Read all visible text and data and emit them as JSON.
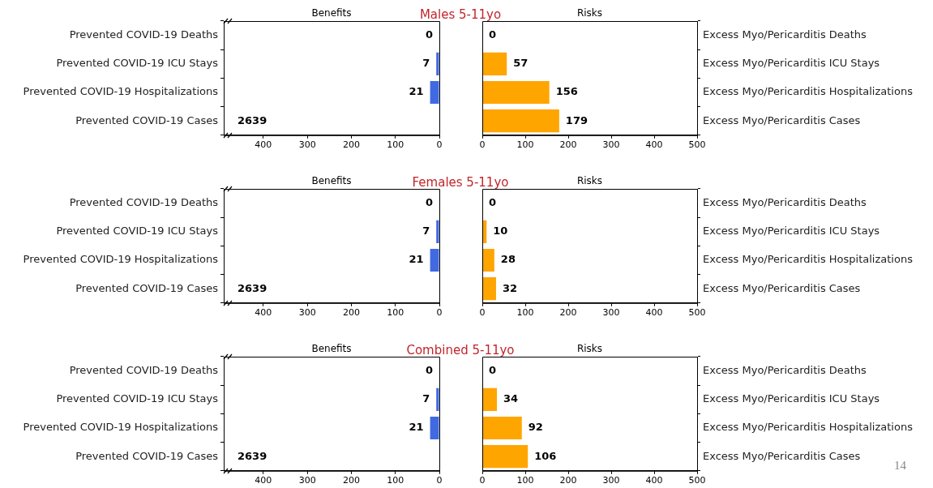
{
  "chart_data": [
    {
      "type": "bar",
      "orientation": "horizontal",
      "title": "Benefits",
      "subtitle": "Males 5-11yo",
      "categories": [
        "Prevented COVID-19 Deaths",
        "Prevented COVID-19 ICU Stays",
        "Prevented COVID-19 Hospitalizations",
        "Prevented COVID-19 Cases"
      ],
      "values": [
        0,
        7,
        21,
        null
      ],
      "value_labels": [
        "0",
        "7",
        "21",
        "2639"
      ],
      "color": "#4169e1",
      "xlim": [
        490,
        0
      ],
      "xticks": [
        400,
        300,
        200,
        100,
        0
      ]
    },
    {
      "type": "bar",
      "orientation": "horizontal",
      "title": "Risks",
      "categories": [
        "Excess Myo/Pericarditis Deaths",
        "Excess Myo/Pericarditis ICU Stays",
        "Excess Myo/Pericarditis Hospitalizations",
        "Excess Myo/Pericarditis Cases"
      ],
      "values": [
        0,
        57,
        156,
        179
      ],
      "color": "#ffa500",
      "xlim": [
        0,
        500
      ],
      "xticks": [
        0,
        100,
        200,
        300,
        400,
        500
      ],
      "data_labels": true
    },
    {
      "type": "bar",
      "orientation": "horizontal",
      "title": "Benefits",
      "subtitle": "Females 5-11yo",
      "categories": [
        "Prevented COVID-19 Deaths",
        "Prevented COVID-19 ICU Stays",
        "Prevented COVID-19 Hospitalizations",
        "Prevented COVID-19 Cases"
      ],
      "values": [
        0,
        7,
        21,
        null
      ],
      "value_labels": [
        "0",
        "7",
        "21",
        "2639"
      ],
      "color": "#4169e1",
      "xlim": [
        490,
        0
      ],
      "xticks": [
        400,
        300,
        200,
        100,
        0
      ]
    },
    {
      "type": "bar",
      "orientation": "horizontal",
      "title": "Risks",
      "categories": [
        "Excess Myo/Pericarditis Deaths",
        "Excess Myo/Pericarditis ICU Stays",
        "Excess Myo/Pericarditis Hospitalizations",
        "Excess Myo/Pericarditis Cases"
      ],
      "values": [
        0,
        10,
        28,
        32
      ],
      "color": "#ffa500",
      "xlim": [
        0,
        500
      ],
      "xticks": [
        0,
        100,
        200,
        300,
        400,
        500
      ],
      "data_labels": true
    },
    {
      "type": "bar",
      "orientation": "horizontal",
      "title": "Benefits",
      "subtitle": "Combined 5-11yo",
      "categories": [
        "Prevented COVID-19 Deaths",
        "Prevented COVID-19 ICU Stays",
        "Prevented COVID-19 Hospitalizations",
        "Prevented COVID-19 Cases"
      ],
      "values": [
        0,
        7,
        21,
        null
      ],
      "value_labels": [
        "0",
        "7",
        "21",
        "2639"
      ],
      "color": "#4169e1",
      "xlim": [
        490,
        0
      ],
      "xticks": [
        400,
        300,
        200,
        100,
        0
      ]
    },
    {
      "type": "bar",
      "orientation": "horizontal",
      "title": "Risks",
      "categories": [
        "Excess Myo/Pericarditis Deaths",
        "Excess Myo/Pericarditis ICU Stays",
        "Excess Myo/Pericarditis Hospitalizations",
        "Excess Myo/Pericarditis Cases"
      ],
      "values": [
        0,
        34,
        92,
        106
      ],
      "color": "#ffa500",
      "xlim": [
        0,
        500
      ],
      "xticks": [
        0,
        100,
        200,
        300,
        400,
        500
      ],
      "data_labels": true,
      "annotations": [
        "14"
      ]
    }
  ]
}
